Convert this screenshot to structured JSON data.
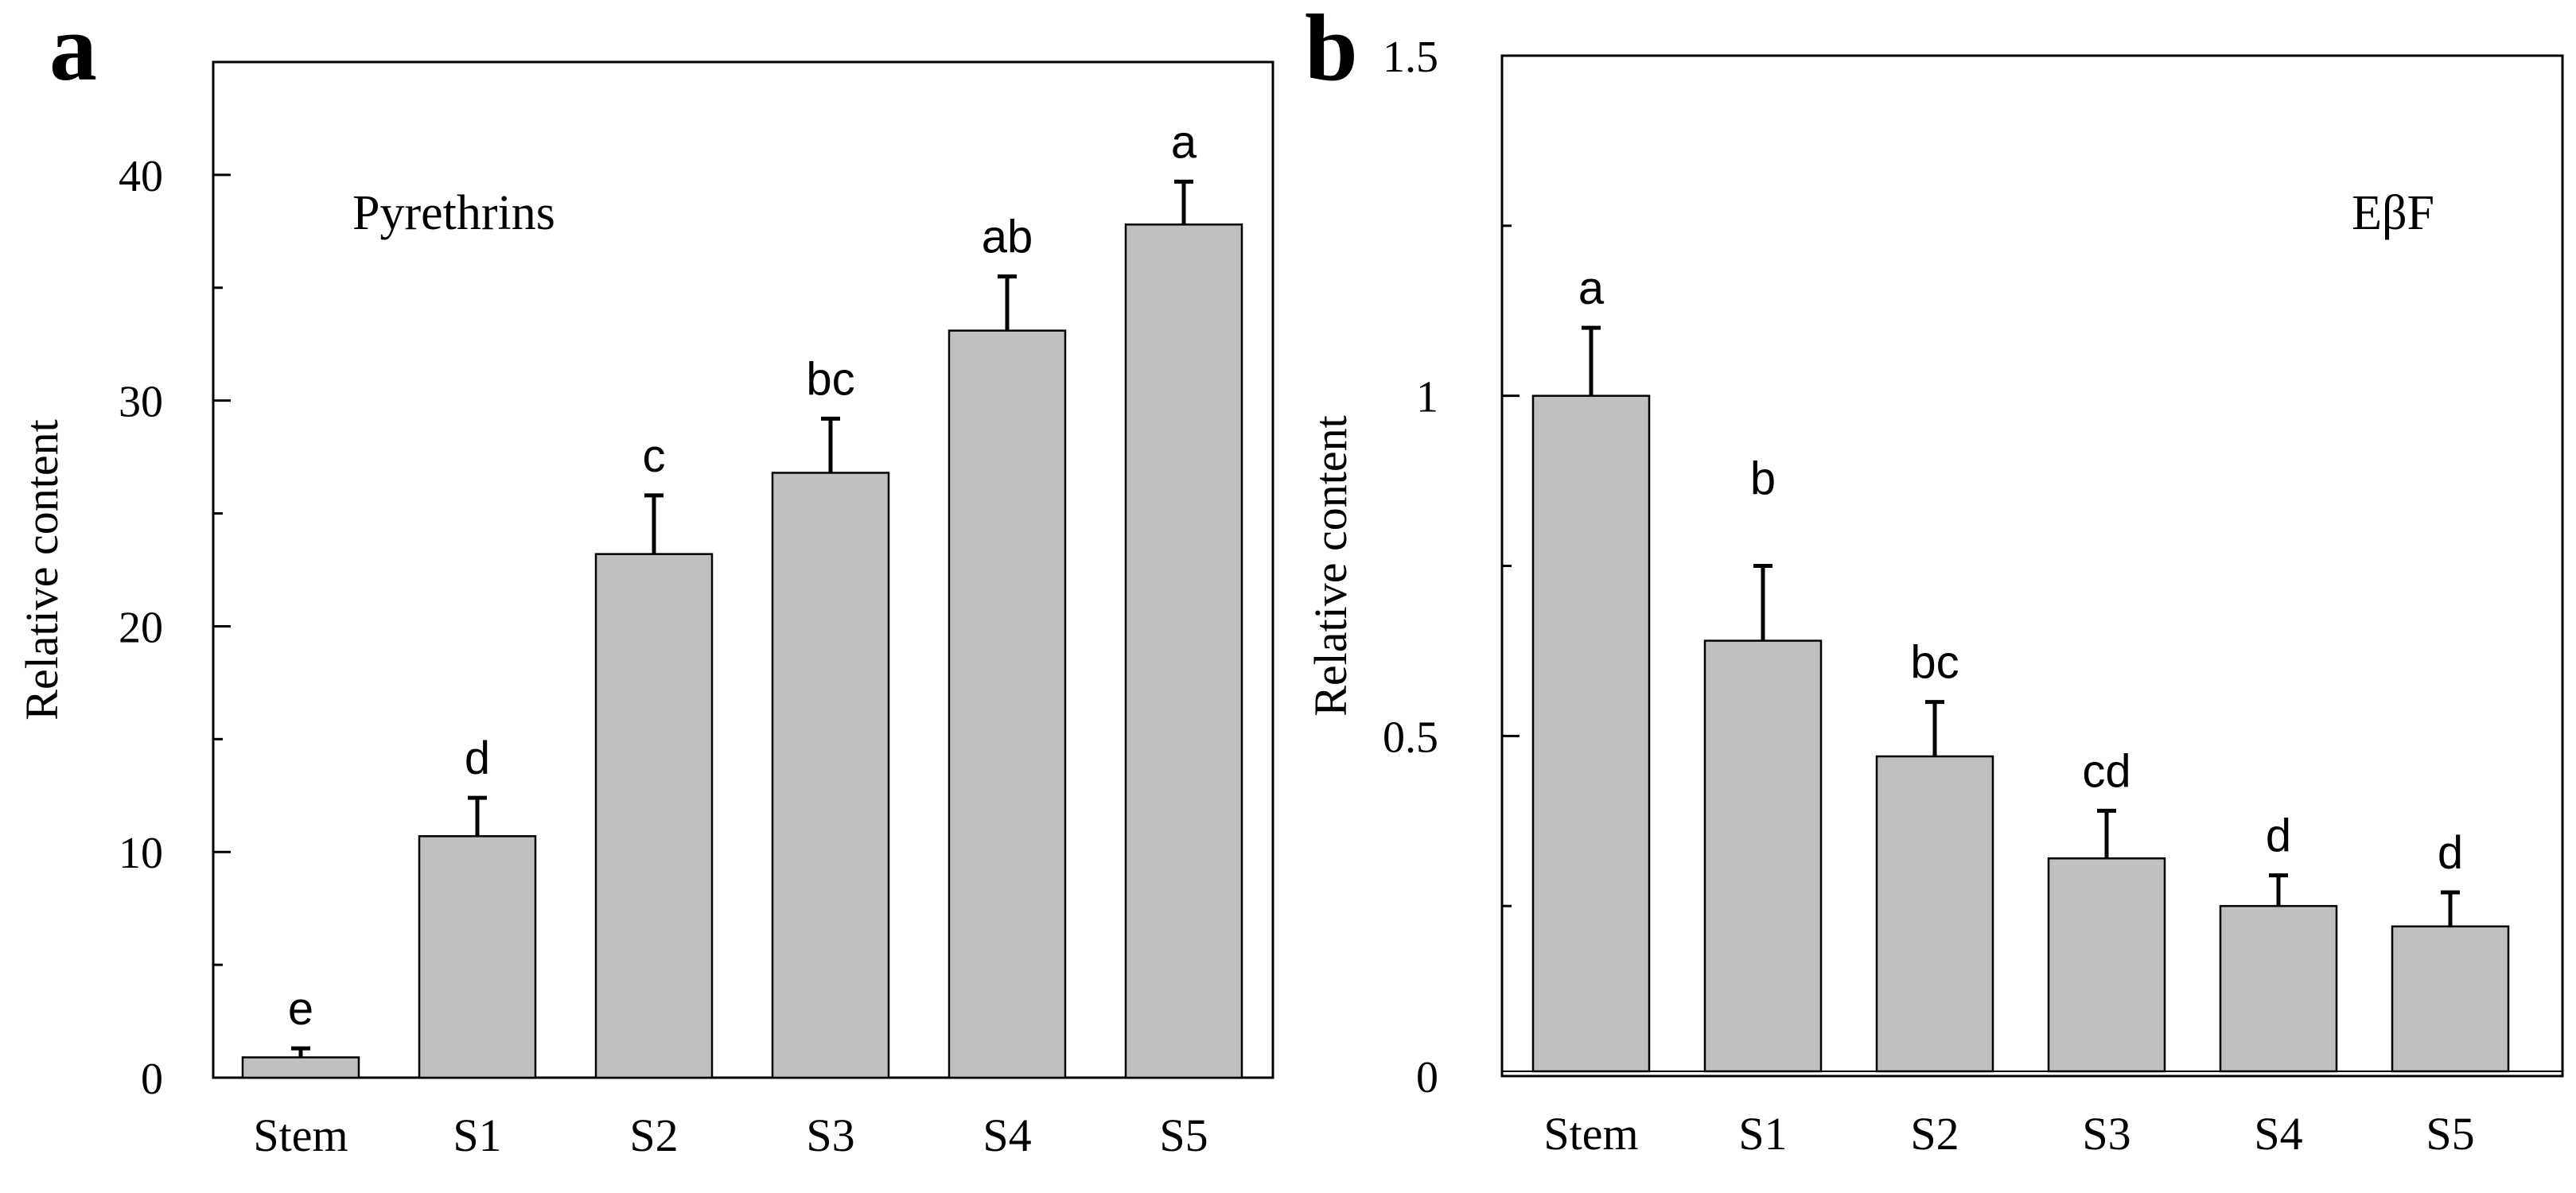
{
  "chart_data": [
    {
      "panel_letter": "a",
      "type": "bar",
      "title": "Pyrethrins",
      "xlabel": "",
      "ylabel": "Relative content",
      "categories": [
        "Stem",
        "S1",
        "S2",
        "S3",
        "S4",
        "S5"
      ],
      "values": [
        0.9,
        10.7,
        23.2,
        26.8,
        33.1,
        37.8
      ],
      "errors": [
        0.4,
        1.7,
        2.6,
        2.4,
        2.4,
        1.9
      ],
      "significance": [
        "e",
        "d",
        "c",
        "bc",
        "ab",
        "a"
      ],
      "ylim": [
        0,
        45
      ],
      "yticks": [
        0,
        10,
        20,
        30,
        40
      ],
      "ytick_labels": [
        "0",
        "10",
        "20",
        "30",
        "40"
      ],
      "minor_yticks": [
        5,
        15,
        25,
        35,
        45
      ],
      "bar_color": "#c0c0c0",
      "grid": false
    },
    {
      "panel_letter": "b",
      "type": "bar",
      "title": "EβF",
      "xlabel": "",
      "ylabel": "Relative content",
      "categories": [
        "Stem",
        "S1",
        "S2",
        "S3",
        "S4",
        "S5"
      ],
      "values": [
        1.0,
        0.64,
        0.47,
        0.32,
        0.25,
        0.22
      ],
      "errors": [
        0.1,
        0.11,
        0.08,
        0.07,
        0.045,
        0.05
      ],
      "significance": [
        "a",
        "b",
        "bc",
        "cd",
        "d",
        "d"
      ],
      "ylim": [
        0,
        1.5
      ],
      "yticks": [
        0,
        0.5,
        1,
        1.5
      ],
      "ytick_labels": [
        "0",
        "0.5",
        "1",
        "1.5"
      ],
      "minor_yticks": [
        0.25,
        0.75,
        1.25
      ],
      "bar_color": "#c0c0c0",
      "grid": false
    }
  ]
}
